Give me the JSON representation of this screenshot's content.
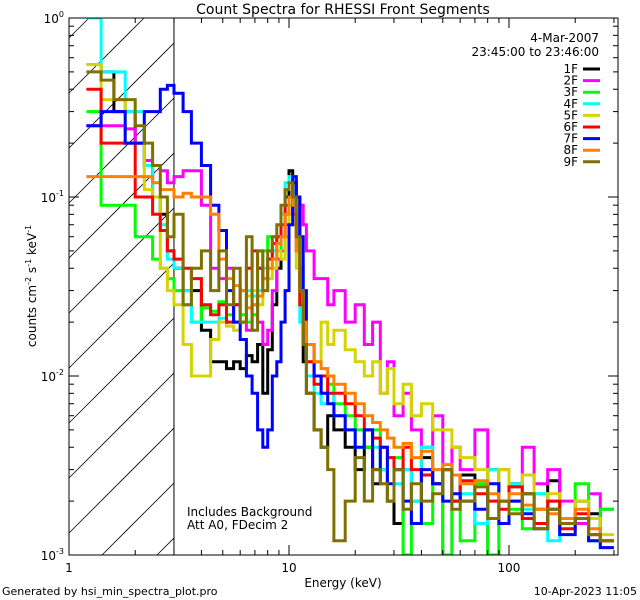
{
  "chart_data": {
    "type": "line",
    "title": "Count Spectra for RHESSI Front Segments",
    "xlabel": "Energy (keV)",
    "ylabel": "counts cm-2 s-1 keV-1",
    "xscale": "log",
    "yscale": "log",
    "xlim": [
      1,
      313
    ],
    "ylim": [
      0.001,
      1
    ],
    "x_ticks": [
      {
        "value": 1,
        "label": "1"
      },
      {
        "value": 10,
        "label": "10"
      },
      {
        "value": 100,
        "label": "100"
      }
    ],
    "y_ticks": [
      {
        "value": 1,
        "base": "10",
        "exp": "0"
      },
      {
        "value": 0.1,
        "base": "10",
        "exp": "-1"
      },
      {
        "value": 0.01,
        "base": "10",
        "exp": "-2"
      },
      {
        "value": 0.001,
        "base": "10",
        "exp": "-3"
      }
    ],
    "hatched_region_keV": [
      1,
      3
    ],
    "date": "4-Mar-2007",
    "time_range": "23:45:00 to 23:46:00",
    "annotations": [
      "Includes Background",
      "Att A0, FDecim 2"
    ],
    "legend_position": "top-right",
    "energy_edges": [
      1.2,
      1.4,
      1.6,
      1.8,
      2.0,
      2.2,
      2.4,
      2.6,
      2.8,
      3.0,
      3.3,
      3.6,
      4.0,
      4.4,
      4.8,
      5.2,
      5.6,
      6.0,
      6.4,
      6.8,
      7.2,
      7.6,
      8.0,
      8.4,
      8.8,
      9.2,
      9.6,
      10,
      10.4,
      10.8,
      11.2,
      11.6,
      12,
      13,
      14,
      15,
      16,
      18,
      20,
      22,
      24,
      26,
      28,
      30,
      33,
      36,
      40,
      45,
      50,
      55,
      60,
      70,
      80,
      90,
      100,
      115,
      130,
      150,
      170,
      200,
      230,
      260,
      300
    ],
    "series": [
      {
        "name": "1F",
        "color": "#000000",
        "values": [
          0.55,
          0.5,
          0.3,
          0.3,
          0.2,
          0.15,
          0.1,
          0.08,
          0.05,
          0.04,
          0.03,
          0.03,
          0.018,
          0.012,
          0.012,
          0.011,
          0.012,
          0.011,
          0.013,
          0.012,
          0.015,
          0.008,
          0.014,
          0.025,
          0.04,
          0.06,
          0.1,
          0.14,
          0.12,
          0.1,
          0.03,
          0.012,
          0.008,
          0.005,
          0.004,
          0.006,
          0.005,
          0.004,
          0.003,
          0.004,
          0.0025,
          0.003,
          0.002,
          0.0015,
          0.003,
          0.002,
          0.0035,
          0.0025,
          0.003,
          0.002,
          0.0028,
          0.0015,
          0.003,
          0.002,
          0.0025,
          0.0022,
          0.0018,
          0.0026,
          0.0015,
          0.002,
          0.0017,
          0.0012
        ]
      },
      {
        "name": "2F",
        "color": "#ff00ff",
        "values": [
          0.25,
          0.25,
          0.25,
          0.24,
          0.2,
          0.16,
          0.15,
          0.14,
          0.12,
          0.13,
          0.14,
          0.14,
          0.09,
          0.04,
          0.035,
          0.04,
          0.025,
          0.02,
          0.018,
          0.025,
          0.02,
          0.015,
          0.018,
          0.03,
          0.045,
          0.05,
          0.07,
          0.1,
          0.08,
          0.06,
          0.09,
          0.07,
          0.05,
          0.035,
          0.035,
          0.025,
          0.03,
          0.02,
          0.025,
          0.015,
          0.02,
          0.008,
          0.012,
          0.006,
          0.008,
          0.005,
          0.004,
          0.006,
          0.001,
          0.004,
          0.003,
          0.005,
          0.001,
          0.003,
          0.002,
          0.004,
          0.0025,
          0.003,
          0.002,
          0.0015,
          0.0022,
          0.0018
        ]
      },
      {
        "name": "3F",
        "color": "#00ff00",
        "values": [
          0.3,
          0.09,
          0.09,
          0.09,
          0.06,
          0.06,
          0.045,
          0.04,
          0.035,
          0.03,
          0.025,
          0.02,
          0.024,
          0.023,
          0.026,
          0.022,
          0.02,
          0.022,
          0.02,
          0.022,
          0.04,
          0.05,
          0.06,
          0.06,
          0.05,
          0.07,
          0.08,
          0.09,
          0.1,
          0.06,
          0.04,
          0.02,
          0.012,
          0.01,
          0.008,
          0.009,
          0.007,
          0.006,
          0.005,
          0.004,
          0.005,
          0.003,
          0.002,
          0.0035,
          0.001,
          0.002,
          0.0015,
          0.003,
          0.001,
          0.002,
          0.0012,
          0.0025,
          0.001,
          0.002,
          0.0018,
          0.0014,
          0.0022,
          0.002,
          0.0015,
          0.0025,
          0.0012,
          0.0018
        ]
      },
      {
        "name": "4F",
        "color": "#00ffff",
        "values": [
          1.0,
          0.5,
          0.5,
          0.3,
          0.3,
          0.15,
          0.1,
          0.07,
          0.045,
          0.04,
          0.03,
          0.02,
          0.02,
          0.02,
          0.021,
          0.02,
          0.025,
          0.02,
          0.03,
          0.028,
          0.03,
          0.04,
          0.045,
          0.05,
          0.06,
          0.08,
          0.12,
          0.13,
          0.09,
          0.05,
          0.02,
          0.015,
          0.01,
          0.008,
          0.007,
          0.008,
          0.006,
          0.005,
          0.004,
          0.005,
          0.004,
          0.003,
          0.0035,
          0.0025,
          0.003,
          0.002,
          0.004,
          0.0025,
          0.003,
          0.002,
          0.0022,
          0.0015,
          0.003,
          0.002,
          0.0025,
          0.0018,
          0.0022,
          0.0012,
          0.0015,
          0.002,
          0.0013,
          0.0011
        ]
      },
      {
        "name": "5F",
        "color": "#d4d400",
        "values": [
          0.55,
          0.35,
          0.35,
          0.2,
          0.2,
          0.11,
          0.1,
          0.04,
          0.03,
          0.025,
          0.015,
          0.01,
          0.01,
          0.016,
          0.02,
          0.019,
          0.018,
          0.02,
          0.028,
          0.03,
          0.025,
          0.03,
          0.035,
          0.04,
          0.05,
          0.045,
          0.06,
          0.08,
          0.07,
          0.04,
          0.025,
          0.02,
          0.015,
          0.012,
          0.02,
          0.015,
          0.018,
          0.014,
          0.012,
          0.01,
          0.012,
          0.008,
          0.011,
          0.007,
          0.009,
          0.006,
          0.007,
          0.005,
          0.005,
          0.004,
          0.0035,
          0.003,
          0.0025,
          0.003,
          0.002,
          0.0028,
          0.0018,
          0.0022,
          0.0015,
          0.002,
          0.0016,
          0.0013
        ]
      },
      {
        "name": "6F",
        "color": "#ff0000",
        "values": [
          0.4,
          0.2,
          0.2,
          0.2,
          0.1,
          0.1,
          0.08,
          0.065,
          0.05,
          0.045,
          0.04,
          0.035,
          0.025,
          0.022,
          0.025,
          0.02,
          0.025,
          0.03,
          0.04,
          0.05,
          0.04,
          0.035,
          0.045,
          0.055,
          0.06,
          0.07,
          0.09,
          0.1,
          0.08,
          0.05,
          0.025,
          0.015,
          0.012,
          0.009,
          0.01,
          0.008,
          0.008,
          0.007,
          0.006,
          0.005,
          0.0045,
          0.004,
          0.0035,
          0.003,
          0.004,
          0.003,
          0.0028,
          0.0025,
          0.003,
          0.002,
          0.0026,
          0.0022,
          0.002,
          0.0018,
          0.0024,
          0.0016,
          0.0015,
          0.002,
          0.0014,
          0.0017,
          0.0013,
          0.0012
        ]
      },
      {
        "name": "7F",
        "color": "#0000ff",
        "values": [
          0.25,
          0.3,
          0.3,
          0.2,
          0.2,
          0.3,
          0.3,
          0.4,
          0.42,
          0.38,
          0.3,
          0.2,
          0.15,
          0.09,
          0.065,
          0.03,
          0.02,
          0.016,
          0.01,
          0.008,
          0.005,
          0.004,
          0.005,
          0.01,
          0.012,
          0.02,
          0.03,
          0.07,
          0.13,
          0.1,
          0.06,
          0.03,
          0.015,
          0.01,
          0.008,
          0.007,
          0.006,
          0.005,
          0.004,
          0.005,
          0.003,
          0.004,
          0.0025,
          0.003,
          0.002,
          0.0015,
          0.003,
          0.0025,
          0.002,
          0.0022,
          0.002,
          0.0018,
          0.0025,
          0.0015,
          0.002,
          0.0017,
          0.0014,
          0.0018,
          0.0013,
          0.0016,
          0.0012,
          0.0011
        ]
      },
      {
        "name": "8F",
        "color": "#ff8000",
        "values": [
          0.13,
          0.13,
          0.13,
          0.13,
          0.13,
          0.13,
          0.12,
          0.11,
          0.11,
          0.1,
          0.105,
          0.1,
          0.1,
          0.08,
          0.045,
          0.035,
          0.032,
          0.03,
          0.024,
          0.025,
          0.028,
          0.035,
          0.04,
          0.045,
          0.055,
          0.06,
          0.08,
          0.1,
          0.09,
          0.05,
          0.03,
          0.02,
          0.015,
          0.012,
          0.011,
          0.01,
          0.009,
          0.008,
          0.007,
          0.006,
          0.0055,
          0.005,
          0.0045,
          0.004,
          0.0042,
          0.0035,
          0.0038,
          0.003,
          0.0032,
          0.0028,
          0.0025,
          0.0026,
          0.0022,
          0.002,
          0.0022,
          0.0019,
          0.0018,
          0.0017,
          0.0016,
          0.0018,
          0.0014,
          0.0012
        ]
      },
      {
        "name": "9F",
        "color": "#807000",
        "values": [
          0.5,
          0.45,
          0.35,
          0.35,
          0.25,
          0.2,
          0.15,
          0.1,
          0.06,
          0.08,
          0.025,
          0.04,
          0.05,
          0.03,
          0.05,
          0.025,
          0.04,
          0.02,
          0.06,
          0.018,
          0.05,
          0.03,
          0.05,
          0.06,
          0.07,
          0.09,
          0.11,
          0.12,
          0.1,
          0.06,
          0.03,
          0.015,
          0.008,
          0.005,
          0.004,
          0.003,
          0.0012,
          0.002,
          0.0035,
          0.002,
          0.003,
          0.0025,
          0.002,
          0.003,
          0.0018,
          0.0025,
          0.002,
          0.0022,
          0.003,
          0.0018,
          0.002,
          0.0024,
          0.0016,
          0.002,
          0.0017,
          0.0022,
          0.0014,
          0.0018,
          0.0015,
          0.0016,
          0.0013,
          0.0012
        ]
      }
    ]
  },
  "footer": {
    "generated_by": "Generated by hsi_min_spectra_plot.pro",
    "timestamp": "10-Apr-2023 11:05"
  }
}
